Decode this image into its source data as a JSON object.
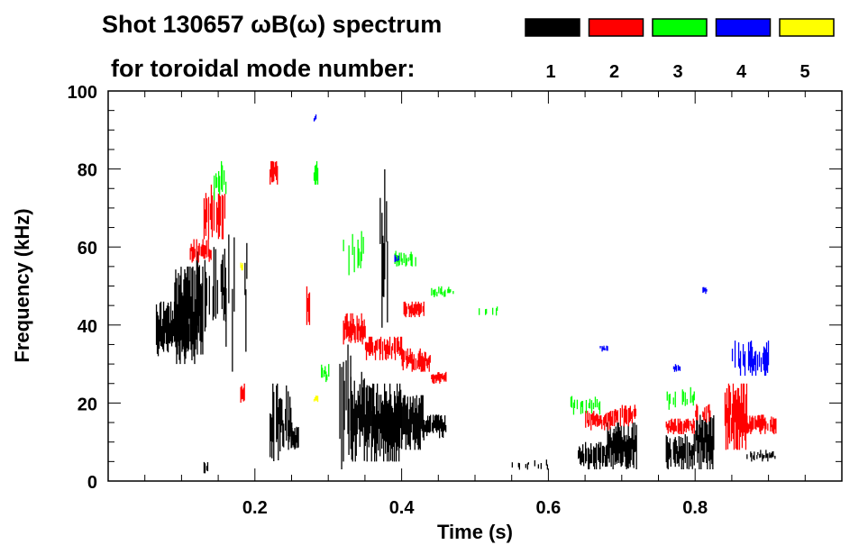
{
  "chart_data": {
    "type": "heatmap",
    "title": "Shot 130657 ωB(ω) spectrum",
    "subtitle": "for toroidal mode number:",
    "xlabel": "Time (s)",
    "ylabel": "Frequency (kHz)",
    "xlim": [
      0,
      1.0
    ],
    "ylim": [
      0,
      100
    ],
    "x_ticks": [
      "0.2",
      "0.4",
      "0.6",
      "0.8"
    ],
    "x_tick_values": [
      0.2,
      0.4,
      0.6,
      0.8
    ],
    "y_ticks": [
      "0",
      "20",
      "40",
      "60",
      "80",
      "100"
    ],
    "y_tick_values": [
      0,
      20,
      40,
      60,
      80,
      100
    ],
    "grid": false,
    "legend": {
      "placement": "top-right",
      "entries": [
        {
          "label": "1",
          "color": "#000000"
        },
        {
          "label": "2",
          "color": "#ff0000"
        },
        {
          "label": "3",
          "color": "#00ff00"
        },
        {
          "label": "4",
          "color": "#0000ff"
        },
        {
          "label": "5",
          "color": "#ffff00"
        }
      ]
    },
    "regions_note_fields": [
      "mode",
      "t_start",
      "t_end",
      "f_low",
      "f_high",
      "density"
    ],
    "regions": [
      [
        1,
        0.065,
        0.11,
        32,
        46,
        0.9
      ],
      [
        1,
        0.09,
        0.13,
        30,
        55,
        0.8
      ],
      [
        1,
        0.12,
        0.16,
        38,
        60,
        0.6
      ],
      [
        1,
        0.16,
        0.19,
        25,
        70,
        0.25
      ],
      [
        1,
        0.13,
        0.135,
        2,
        5,
        0.8
      ],
      [
        1,
        0.22,
        0.25,
        5,
        25,
        0.6
      ],
      [
        1,
        0.245,
        0.26,
        8,
        14,
        0.7
      ],
      [
        1,
        0.315,
        0.33,
        3,
        35,
        0.7
      ],
      [
        1,
        0.33,
        0.36,
        5,
        28,
        0.9
      ],
      [
        1,
        0.36,
        0.4,
        5,
        25,
        0.95
      ],
      [
        1,
        0.4,
        0.43,
        8,
        22,
        0.85
      ],
      [
        1,
        0.43,
        0.46,
        11,
        17,
        0.8
      ],
      [
        1,
        0.37,
        0.38,
        35,
        82,
        0.4
      ],
      [
        1,
        0.55,
        0.6,
        2,
        6,
        0.15
      ],
      [
        1,
        0.64,
        0.68,
        3,
        10,
        0.7
      ],
      [
        1,
        0.68,
        0.72,
        3,
        15,
        0.9
      ],
      [
        1,
        0.76,
        0.8,
        3,
        12,
        0.8
      ],
      [
        1,
        0.8,
        0.825,
        3,
        18,
        0.9
      ],
      [
        1,
        0.87,
        0.91,
        5,
        8,
        0.5
      ],
      [
        2,
        0.11,
        0.14,
        56,
        62,
        0.8
      ],
      [
        2,
        0.13,
        0.16,
        62,
        76,
        0.7
      ],
      [
        2,
        0.22,
        0.23,
        76,
        82,
        0.8
      ],
      [
        2,
        0.27,
        0.275,
        40,
        50,
        0.8
      ],
      [
        2,
        0.18,
        0.185,
        20,
        25,
        0.8
      ],
      [
        2,
        0.32,
        0.35,
        35,
        43,
        0.8
      ],
      [
        2,
        0.35,
        0.4,
        31,
        37,
        0.8
      ],
      [
        2,
        0.4,
        0.44,
        28,
        34,
        0.8
      ],
      [
        2,
        0.44,
        0.46,
        25,
        28,
        0.8
      ],
      [
        2,
        0.4,
        0.43,
        42,
        46,
        0.8
      ],
      [
        2,
        0.65,
        0.69,
        13,
        18,
        0.8
      ],
      [
        2,
        0.69,
        0.72,
        14,
        20,
        0.6
      ],
      [
        2,
        0.76,
        0.8,
        12,
        16,
        0.7
      ],
      [
        2,
        0.8,
        0.82,
        15,
        20,
        0.6
      ],
      [
        2,
        0.84,
        0.87,
        8,
        25,
        0.9
      ],
      [
        2,
        0.87,
        0.91,
        12,
        17,
        0.8
      ],
      [
        3,
        0.14,
        0.16,
        72,
        82,
        0.5
      ],
      [
        3,
        0.28,
        0.285,
        76,
        82,
        0.7
      ],
      [
        3,
        0.32,
        0.35,
        52,
        65,
        0.3
      ],
      [
        3,
        0.39,
        0.42,
        55,
        59,
        0.6
      ],
      [
        3,
        0.44,
        0.47,
        47,
        50,
        0.4
      ],
      [
        3,
        0.5,
        0.53,
        42,
        46,
        0.2
      ],
      [
        3,
        0.63,
        0.67,
        17,
        22,
        0.4
      ],
      [
        3,
        0.76,
        0.8,
        18,
        25,
        0.3
      ],
      [
        3,
        0.29,
        0.3,
        25,
        30,
        0.5
      ],
      [
        4,
        0.85,
        0.9,
        27,
        36,
        0.6
      ],
      [
        4,
        0.77,
        0.78,
        28,
        30,
        0.7
      ],
      [
        4,
        0.81,
        0.815,
        48,
        50,
        0.8
      ],
      [
        4,
        0.28,
        0.283,
        92,
        94,
        0.8
      ],
      [
        4,
        0.39,
        0.395,
        56,
        58,
        0.8
      ],
      [
        4,
        0.67,
        0.68,
        33,
        35,
        0.6
      ],
      [
        5,
        0.28,
        0.285,
        20,
        22,
        0.9
      ],
      [
        5,
        0.18,
        0.183,
        54,
        56,
        0.9
      ]
    ]
  }
}
